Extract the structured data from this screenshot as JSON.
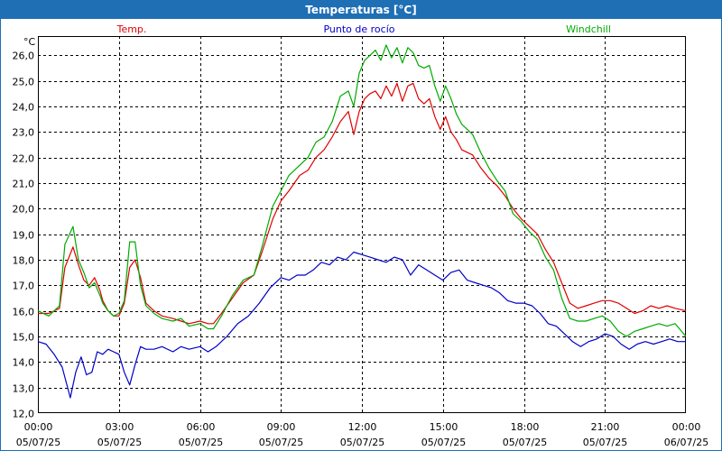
{
  "window": {
    "title": "Temperaturas [°C]"
  },
  "chart_data": {
    "type": "line",
    "title": "Temperaturas [°C]",
    "ylabel": "°C",
    "ylim": [
      12.0,
      26.75
    ],
    "xlim": [
      "05/07/25 00:00",
      "06/07/25 00:00"
    ],
    "grid": true,
    "yticks": [
      12.0,
      13.0,
      14.0,
      15.0,
      16.0,
      17.0,
      18.0,
      19.0,
      20.0,
      21.0,
      22.0,
      23.0,
      24.0,
      25.0,
      26.0
    ],
    "ytick_labels": [
      "12,0",
      "13,0",
      "14,0",
      "15,0",
      "16,0",
      "17,0",
      "18,0",
      "19,0",
      "20,0",
      "21,0",
      "22,0",
      "23,0",
      "24,0",
      "25,0",
      "26,0"
    ],
    "xticks": [
      0,
      3,
      6,
      9,
      12,
      15,
      18,
      21,
      24
    ],
    "xtick_labels": [
      [
        "00:00",
        "05/07/25"
      ],
      [
        "03:00",
        "05/07/25"
      ],
      [
        "06:00",
        "05/07/25"
      ],
      [
        "09:00",
        "05/07/25"
      ],
      [
        "12:00",
        "05/07/25"
      ],
      [
        "15:00",
        "05/07/25"
      ],
      [
        "18:00",
        "05/07/25"
      ],
      [
        "21:00",
        "05/07/25"
      ],
      [
        "00:00",
        "06/07/25"
      ]
    ],
    "x_unit": "hours since 05/07/25 00:00",
    "legend": [
      {
        "label": "Temp.",
        "color": "#e00000",
        "position": "top-left"
      },
      {
        "label": "Punto de rocío",
        "color": "#0000c8",
        "position": "top-center"
      },
      {
        "label": "Windchill",
        "color": "#00aa00",
        "position": "top-right"
      }
    ],
    "series": [
      {
        "name": "Temp.",
        "color": "#e00000",
        "x": [
          0,
          0.4,
          0.8,
          1.0,
          1.3,
          1.5,
          1.7,
          1.9,
          2.1,
          2.3,
          2.4,
          2.6,
          2.8,
          3.0,
          3.2,
          3.4,
          3.6,
          3.8,
          4.0,
          4.3,
          4.6,
          5.0,
          5.3,
          5.6,
          6.0,
          6.3,
          6.5,
          6.8,
          7.2,
          7.6,
          8.0,
          8.3,
          8.7,
          9.0,
          9.3,
          9.7,
          10.0,
          10.3,
          10.6,
          10.9,
          11.2,
          11.5,
          11.7,
          11.9,
          12.1,
          12.3,
          12.5,
          12.7,
          12.9,
          13.1,
          13.3,
          13.5,
          13.7,
          13.9,
          14.1,
          14.3,
          14.5,
          14.7,
          14.9,
          15.1,
          15.3,
          15.5,
          15.7,
          15.9,
          16.1,
          16.4,
          16.7,
          17.0,
          17.3,
          17.6,
          17.9,
          18.2,
          18.5,
          18.8,
          19.1,
          19.4,
          19.7,
          20.0,
          20.3,
          20.6,
          20.9,
          21.2,
          21.5,
          21.8,
          22.1,
          22.4,
          22.7,
          23.0,
          23.3,
          23.6,
          24.0
        ],
        "values": [
          15.9,
          15.9,
          16.1,
          17.7,
          18.5,
          17.8,
          17.2,
          17.0,
          17.3,
          16.8,
          16.4,
          16.0,
          15.8,
          15.8,
          16.3,
          17.7,
          18.0,
          17.3,
          16.3,
          16.0,
          15.8,
          15.7,
          15.6,
          15.5,
          15.6,
          15.5,
          15.5,
          15.9,
          16.5,
          17.1,
          17.4,
          18.3,
          19.6,
          20.3,
          20.7,
          21.3,
          21.5,
          22.0,
          22.3,
          22.8,
          23.4,
          23.8,
          22.9,
          23.8,
          24.3,
          24.5,
          24.6,
          24.3,
          24.8,
          24.4,
          24.9,
          24.2,
          24.8,
          24.9,
          24.3,
          24.1,
          24.3,
          23.6,
          23.1,
          23.6,
          23.0,
          22.7,
          22.3,
          22.2,
          22.1,
          21.6,
          21.2,
          20.9,
          20.5,
          20.0,
          19.6,
          19.3,
          19.0,
          18.4,
          17.9,
          17.1,
          16.3,
          16.1,
          16.2,
          16.3,
          16.4,
          16.4,
          16.3,
          16.1,
          15.9,
          16.0,
          16.2,
          16.1,
          16.2,
          16.1,
          16.0
        ]
      },
      {
        "name": "Punto de rocío",
        "color": "#0000c8",
        "x": [
          0,
          0.3,
          0.6,
          0.9,
          1.2,
          1.4,
          1.6,
          1.8,
          2.0,
          2.2,
          2.4,
          2.6,
          2.8,
          3.0,
          3.2,
          3.4,
          3.6,
          3.8,
          4.0,
          4.3,
          4.6,
          5.0,
          5.3,
          5.6,
          6.0,
          6.3,
          6.6,
          7.0,
          7.4,
          7.8,
          8.2,
          8.6,
          9.0,
          9.3,
          9.6,
          9.9,
          10.2,
          10.5,
          10.8,
          11.1,
          11.4,
          11.7,
          12.0,
          12.3,
          12.6,
          12.9,
          13.2,
          13.5,
          13.8,
          14.1,
          14.4,
          14.7,
          15.0,
          15.3,
          15.6,
          15.9,
          16.2,
          16.5,
          16.8,
          17.1,
          17.4,
          17.7,
          18.0,
          18.3,
          18.6,
          18.9,
          19.2,
          19.5,
          19.8,
          20.1,
          20.4,
          20.7,
          21.0,
          21.3,
          21.6,
          21.9,
          22.2,
          22.5,
          22.8,
          23.1,
          23.4,
          23.7,
          24.0
        ],
        "values": [
          14.8,
          14.7,
          14.3,
          13.8,
          12.6,
          13.6,
          14.2,
          13.5,
          13.6,
          14.4,
          14.3,
          14.5,
          14.4,
          14.3,
          13.6,
          13.1,
          13.9,
          14.6,
          14.5,
          14.5,
          14.6,
          14.4,
          14.6,
          14.5,
          14.6,
          14.4,
          14.6,
          15.0,
          15.5,
          15.8,
          16.3,
          16.9,
          17.3,
          17.2,
          17.4,
          17.4,
          17.6,
          17.9,
          17.8,
          18.1,
          18.0,
          18.3,
          18.2,
          18.1,
          18.0,
          17.9,
          18.1,
          18.0,
          17.4,
          17.8,
          17.6,
          17.4,
          17.2,
          17.5,
          17.6,
          17.2,
          17.1,
          17.0,
          16.9,
          16.7,
          16.4,
          16.3,
          16.3,
          16.2,
          15.9,
          15.5,
          15.4,
          15.1,
          14.8,
          14.6,
          14.8,
          14.9,
          15.1,
          15.0,
          14.7,
          14.5,
          14.7,
          14.8,
          14.7,
          14.8,
          14.9,
          14.8,
          14.8
        ]
      },
      {
        "name": "Windchill",
        "color": "#00aa00",
        "x": [
          0,
          0.4,
          0.8,
          1.0,
          1.3,
          1.5,
          1.7,
          1.9,
          2.1,
          2.3,
          2.4,
          2.6,
          2.8,
          3.0,
          3.2,
          3.4,
          3.6,
          3.8,
          4.0,
          4.3,
          4.6,
          5.0,
          5.3,
          5.6,
          6.0,
          6.3,
          6.5,
          6.8,
          7.2,
          7.6,
          8.0,
          8.3,
          8.7,
          9.0,
          9.3,
          9.7,
          10.0,
          10.3,
          10.6,
          10.9,
          11.2,
          11.5,
          11.7,
          11.9,
          12.1,
          12.3,
          12.5,
          12.7,
          12.9,
          13.1,
          13.3,
          13.5,
          13.7,
          13.9,
          14.1,
          14.3,
          14.5,
          14.7,
          14.9,
          15.1,
          15.3,
          15.5,
          15.7,
          15.9,
          16.1,
          16.4,
          16.7,
          17.0,
          17.3,
          17.6,
          17.9,
          18.2,
          18.5,
          18.8,
          19.1,
          19.4,
          19.7,
          20.0,
          20.3,
          20.6,
          20.9,
          21.2,
          21.5,
          21.8,
          22.1,
          22.4,
          22.7,
          23.0,
          23.3,
          23.6,
          24.0
        ],
        "values": [
          16.0,
          15.8,
          16.2,
          18.6,
          19.3,
          18.0,
          17.5,
          16.9,
          17.1,
          16.6,
          16.3,
          16.0,
          15.8,
          15.9,
          16.4,
          18.7,
          18.7,
          17.0,
          16.2,
          15.9,
          15.7,
          15.6,
          15.7,
          15.4,
          15.5,
          15.3,
          15.3,
          15.8,
          16.6,
          17.2,
          17.4,
          18.5,
          20.1,
          20.7,
          21.3,
          21.7,
          22.0,
          22.6,
          22.8,
          23.4,
          24.4,
          24.6,
          24.0,
          25.3,
          25.8,
          26.0,
          26.2,
          25.8,
          26.4,
          25.9,
          26.3,
          25.7,
          26.3,
          26.1,
          25.6,
          25.5,
          25.6,
          24.8,
          24.2,
          24.8,
          24.3,
          23.7,
          23.3,
          23.1,
          22.9,
          22.2,
          21.6,
          21.1,
          20.7,
          19.8,
          19.5,
          19.1,
          18.8,
          18.1,
          17.6,
          16.5,
          15.7,
          15.6,
          15.6,
          15.7,
          15.8,
          15.6,
          15.2,
          15.0,
          15.2,
          15.3,
          15.4,
          15.5,
          15.4,
          15.5,
          15.0
        ]
      }
    ]
  }
}
